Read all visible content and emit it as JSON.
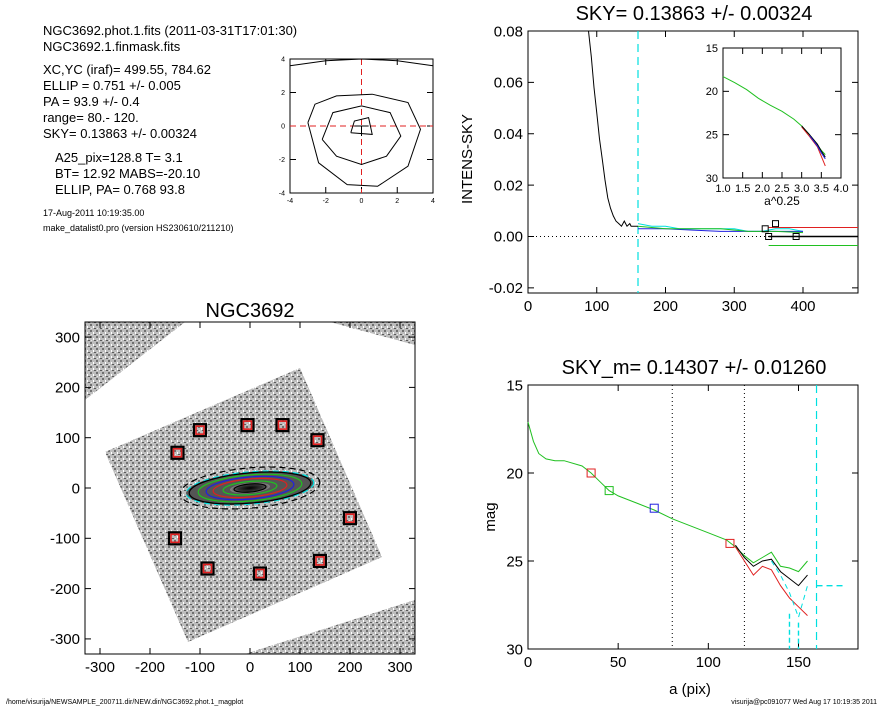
{
  "info": {
    "lines_a": [
      "NGC3692.phot.1.fits  (2011-03-31T17:01:30)",
      "NGC3692.1.finmask.fits"
    ],
    "lines_b": [
      "XC,YC (iraf)=   499.55, 784.62",
      "ELLIP = 0.751 +/- 0.005",
      "PA    =  93.9 +/-   0.4",
      "range=   80.-  120.",
      "SKY= 0.13863 +/- 0.00324"
    ],
    "lines_c": [
      "A25_pix=128.8   T= 3.1",
      "BT=  12.92   MABS=-20.10",
      "ELLIP, PA= 0.768    93.8"
    ],
    "date": "17-Aug-2011 10:19:35.00",
    "program": "make_datalist0.pro (version HS230610/211210)"
  },
  "footer": {
    "left": "/home/visurija/NEWSAMPLE_200711.dir/NEW.dir/NGC3692.phot.1_magplot",
    "right": "visurija@pc091077  Wed Aug 17 10:19:35 2011"
  },
  "colors": {
    "black": "#000000",
    "red": "#e02020",
    "green": "#20c020",
    "blue": "#2020e0",
    "cyan": "#00e0e0",
    "gray": "#a0a0a0"
  },
  "chart_data": [
    {
      "id": "centroid",
      "type": "line",
      "xlim": [
        -4,
        4
      ],
      "ylim": [
        -4,
        4
      ],
      "xticks": [
        "-4",
        "-2",
        "0",
        "2",
        "4"
      ],
      "yticks": [
        "-4",
        "-2",
        "0",
        "2",
        "4"
      ],
      "contours": [
        [
          [
            -0.6,
            -0.4
          ],
          [
            0.6,
            -0.5
          ],
          [
            0.4,
            0.5
          ],
          [
            -0.4,
            0.3
          ]
        ],
        [
          [
            -2.2,
            -0.8
          ],
          [
            -1.4,
            -1.8
          ],
          [
            0,
            -2.3
          ],
          [
            1.4,
            -1.8
          ],
          [
            2.2,
            -0.6
          ],
          [
            1.6,
            0.8
          ],
          [
            0,
            1.2
          ],
          [
            -1.6,
            0.8
          ]
        ],
        [
          [
            -3.0,
            0.2
          ],
          [
            -2.4,
            -2.2
          ],
          [
            -0.8,
            -3.5
          ],
          [
            0.9,
            -3.6
          ],
          [
            2.6,
            -2.4
          ],
          [
            3.3,
            -0.2
          ],
          [
            2.6,
            1.4
          ],
          [
            0.6,
            1.9
          ],
          [
            -1.4,
            1.8
          ],
          [
            -2.6,
            1.3
          ]
        ]
      ],
      "top_arc": [
        [
          -4,
          3.6
        ],
        [
          -2,
          3.9
        ],
        [
          0,
          4
        ],
        [
          2,
          3.9
        ],
        [
          4,
          3.6
        ]
      ],
      "center": [
        0,
        0
      ]
    },
    {
      "id": "sky-profile",
      "type": "line",
      "title": "SKY= 0.13863 +/- 0.00324",
      "xlabel": "",
      "ylabel": "INTENS-SKY",
      "xlim": [
        0,
        480
      ],
      "ylim": [
        -0.022,
        0.08
      ],
      "xticks": [
        "0",
        "100",
        "200",
        "300",
        "400"
      ],
      "yticks": [
        "-0.02",
        "0.00",
        "0.02",
        "0.04",
        "0.06",
        "0.08"
      ],
      "vline_cyan": 160,
      "zero_line": 0,
      "series": [
        {
          "color": "black",
          "x": [
            88,
            92,
            96,
            100,
            104,
            108,
            112,
            116,
            120,
            124,
            128,
            132,
            136,
            140,
            144,
            148,
            150,
            155,
            160
          ],
          "y": [
            0.08,
            0.07,
            0.058,
            0.048,
            0.038,
            0.03,
            0.022,
            0.015,
            0.011,
            0.008,
            0.006,
            0.005,
            0.004,
            0.006,
            0.004,
            0.005,
            0.004,
            0.004,
            0.004
          ]
        },
        {
          "color": "cyan",
          "x": [
            160,
            180,
            200,
            220,
            240,
            260,
            280,
            300,
            320,
            340,
            360,
            380,
            400
          ],
          "y": [
            0.005,
            0.004,
            0.004,
            0.003,
            0.003,
            0.003,
            0.003,
            0.003,
            0.002,
            0.002,
            0.003,
            0.003,
            0.002
          ]
        },
        {
          "color": "blue",
          "x": [
            160,
            200,
            240,
            280,
            320,
            360,
            400
          ],
          "y": [
            0.003,
            0.003,
            0.0025,
            0.002,
            0.002,
            0.002,
            0.002
          ]
        },
        {
          "color": "green",
          "x": [
            160,
            200,
            240,
            280,
            320,
            360,
            400
          ],
          "y": [
            0.004,
            0.003,
            0.003,
            0.003,
            0.002,
            0.002,
            0.0015
          ]
        }
      ],
      "sky_levels": [
        {
          "color": "red",
          "x": [
            350,
            480
          ],
          "y": 0.0035
        },
        {
          "color": "black",
          "x": [
            350,
            480
          ],
          "y": 0.0
        },
        {
          "color": "green",
          "x": [
            350,
            480
          ],
          "y": -0.0035
        }
      ],
      "markers": [
        [
          345,
          0.003
        ],
        [
          360,
          0.005
        ],
        [
          350,
          0.0
        ],
        [
          390,
          0.0
        ]
      ],
      "inset": {
        "xlabel": "a^0.25",
        "xlim": [
          1.0,
          4.0
        ],
        "ylim": [
          15,
          30
        ],
        "xticks": [
          "1.0",
          "1.5",
          "2.0",
          "2.5",
          "3.0",
          "3.5",
          "4.0"
        ],
        "yticks": [
          "15",
          "20",
          "25",
          "30"
        ],
        "series": [
          {
            "color": "green",
            "x": [
              1.0,
              1.3,
              1.6,
              1.9,
              2.2,
              2.5,
              2.8,
              3.0,
              3.2,
              3.4,
              3.5,
              3.6
            ],
            "y": [
              18.3,
              19.0,
              19.8,
              20.8,
              21.6,
              22.3,
              23.2,
              24.0,
              25.0,
              26.2,
              26.8,
              27.3
            ]
          },
          {
            "color": "red",
            "x": [
              3.0,
              3.2,
              3.4,
              3.5,
              3.6
            ],
            "y": [
              24.1,
              25.2,
              26.4,
              27.5,
              28.6
            ]
          },
          {
            "color": "black",
            "x": [
              3.0,
              3.2,
              3.4,
              3.5,
              3.6
            ],
            "y": [
              24.0,
              25.0,
              26.1,
              26.9,
              27.6
            ]
          },
          {
            "color": "blue",
            "x": [
              3.2,
              3.4,
              3.5,
              3.6
            ],
            "y": [
              25.1,
              26.3,
              27.1,
              27.8
            ]
          }
        ]
      }
    },
    {
      "id": "image",
      "type": "scatter",
      "title": "NGC3692",
      "xlim": [
        -330,
        330
      ],
      "ylim": [
        -330,
        330
      ],
      "xticks": [
        "-300",
        "-200",
        "-100",
        "0",
        "100",
        "200",
        "300"
      ],
      "yticks": [
        "-300",
        "-200",
        "-100",
        "0",
        "100",
        "200",
        "300"
      ],
      "ellipses": [
        {
          "color": "black",
          "a": 140,
          "b": 40,
          "dash": true
        },
        {
          "color": "cyan",
          "a": 128,
          "b": 32,
          "dash": true
        },
        {
          "color": "black",
          "a": 122,
          "b": 30,
          "dash": false
        },
        {
          "color": "green",
          "a": 104,
          "b": 26,
          "dash": false
        },
        {
          "color": "blue",
          "a": 88,
          "b": 22,
          "dash": false
        },
        {
          "color": "red",
          "a": 74,
          "b": 18,
          "dash": false
        },
        {
          "color": "green",
          "a": 54,
          "b": 13,
          "dash": false
        },
        {
          "color": "black",
          "a": 32,
          "b": 8,
          "dash": false
        }
      ],
      "pa_deg": 5,
      "boxes": [
        [
          -145,
          70
        ],
        [
          -100,
          115
        ],
        [
          -5,
          125
        ],
        [
          65,
          125
        ],
        [
          135,
          95
        ],
        [
          -150,
          -100
        ],
        [
          200,
          -60
        ],
        [
          -85,
          -160
        ],
        [
          20,
          -170
        ],
        [
          140,
          -145
        ]
      ]
    },
    {
      "id": "mag-profile",
      "type": "line",
      "title": "SKY_m=  0.14307 +/- 0.01260",
      "xlabel": "a (pix)",
      "ylabel": "mag",
      "xlim": [
        0,
        183
      ],
      "ylim": [
        15,
        30
      ],
      "xticks": [
        "0",
        "50",
        "100",
        "150"
      ],
      "yticks": [
        "15",
        "20",
        "25",
        "30"
      ],
      "vlines_dotted": [
        80,
        120
      ],
      "vline_cyan": 160,
      "series": [
        {
          "color": "green",
          "x": [
            0,
            3,
            6,
            10,
            15,
            20,
            30,
            35,
            40,
            45,
            50,
            60,
            70,
            80,
            90,
            100,
            110,
            115,
            120,
            125,
            130,
            135,
            140,
            145,
            150,
            155
          ],
          "y": [
            17.1,
            18.2,
            18.9,
            19.2,
            19.3,
            19.3,
            19.6,
            20.0,
            20.5,
            21.0,
            21.3,
            21.7,
            22.1,
            22.6,
            23.0,
            23.4,
            23.8,
            24.2,
            24.7,
            25.1,
            24.8,
            24.5,
            25.3,
            25.4,
            25.6,
            25.0
          ]
        },
        {
          "color": "black",
          "x": [
            115,
            120,
            125,
            130,
            135,
            140,
            145,
            150,
            155
          ],
          "y": [
            24.1,
            24.8,
            25.3,
            25.0,
            24.9,
            25.6,
            26.0,
            26.4,
            25.8
          ]
        },
        {
          "color": "red",
          "x": [
            115,
            120,
            125,
            130,
            135,
            140,
            145,
            150,
            155
          ],
          "y": [
            24.2,
            25.0,
            25.8,
            25.3,
            25.5,
            26.4,
            27.1,
            27.6,
            28.1
          ]
        },
        {
          "color": "cyan",
          "x": [
            135,
            140,
            145,
            150,
            155
          ],
          "y": [
            25.0,
            25.8,
            26.8,
            28.2,
            26.4
          ]
        }
      ],
      "markers": [
        {
          "color": "red",
          "x": 35,
          "y": 20.0
        },
        {
          "color": "green",
          "x": 45,
          "y": 21.0
        },
        {
          "color": "blue",
          "x": 70,
          "y": 22.0
        },
        {
          "color": "red",
          "x": 112,
          "y": 24.0
        }
      ],
      "cyan_ticks": [
        [
          145,
          28.0,
          30.0
        ],
        [
          150,
          28.5,
          30.0
        ],
        [
          160,
          26.4,
          26.4
        ]
      ]
    }
  ]
}
